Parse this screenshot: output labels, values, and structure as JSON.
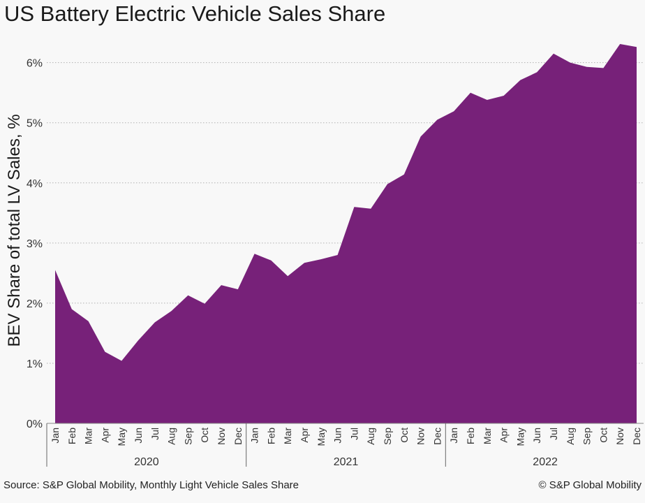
{
  "title": "US Battery Electric Vehicle Sales Share",
  "source": "Source: S&P Global Mobility, Monthly Light Vehicle Sales Share",
  "copyright": "© S&P Global Mobility",
  "colors": {
    "area": "#772179",
    "grid": "#b0b0b0",
    "axis": "#555555",
    "background": "#f8f8f8"
  },
  "chart_data": {
    "type": "area",
    "title": "US Battery Electric Vehicle Sales Share",
    "ylabel": "BEV Share of total LV Sales, %",
    "xlabel": "",
    "ylim": [
      0,
      6.6
    ],
    "yticks": [
      0,
      1,
      2,
      3,
      4,
      5,
      6
    ],
    "ytick_labels": [
      "0%",
      "1%",
      "2%",
      "3%",
      "4%",
      "5%",
      "6%"
    ],
    "grid": "horizontal dotted",
    "year_groups": [
      {
        "label": "2020",
        "months": 12
      },
      {
        "label": "2021",
        "months": 12
      },
      {
        "label": "2022",
        "months": 12
      }
    ],
    "categories": [
      "Jan",
      "Feb",
      "Mar",
      "Apr",
      "May",
      "Jun",
      "Jul",
      "Aug",
      "Sep",
      "Oct",
      "Nov",
      "Dec",
      "Jan",
      "Feb",
      "Mar",
      "Apr",
      "May",
      "Jun",
      "Jul",
      "Aug",
      "Sep",
      "Oct",
      "Nov",
      "Dec",
      "Jan",
      "Feb",
      "Mar",
      "Apr",
      "May",
      "Jun",
      "Jul",
      "Aug",
      "Sep",
      "Oct",
      "Nov",
      "Dec"
    ],
    "values": [
      2.55,
      1.9,
      1.7,
      1.19,
      1.04,
      1.38,
      1.68,
      1.87,
      2.13,
      1.99,
      2.3,
      2.23,
      2.82,
      2.71,
      2.45,
      2.67,
      2.73,
      2.8,
      3.6,
      3.57,
      3.98,
      4.14,
      4.77,
      5.05,
      5.19,
      5.5,
      5.38,
      5.45,
      5.71,
      5.84,
      6.15,
      6.0,
      5.93,
      5.91,
      6.31,
      6.26
    ]
  }
}
